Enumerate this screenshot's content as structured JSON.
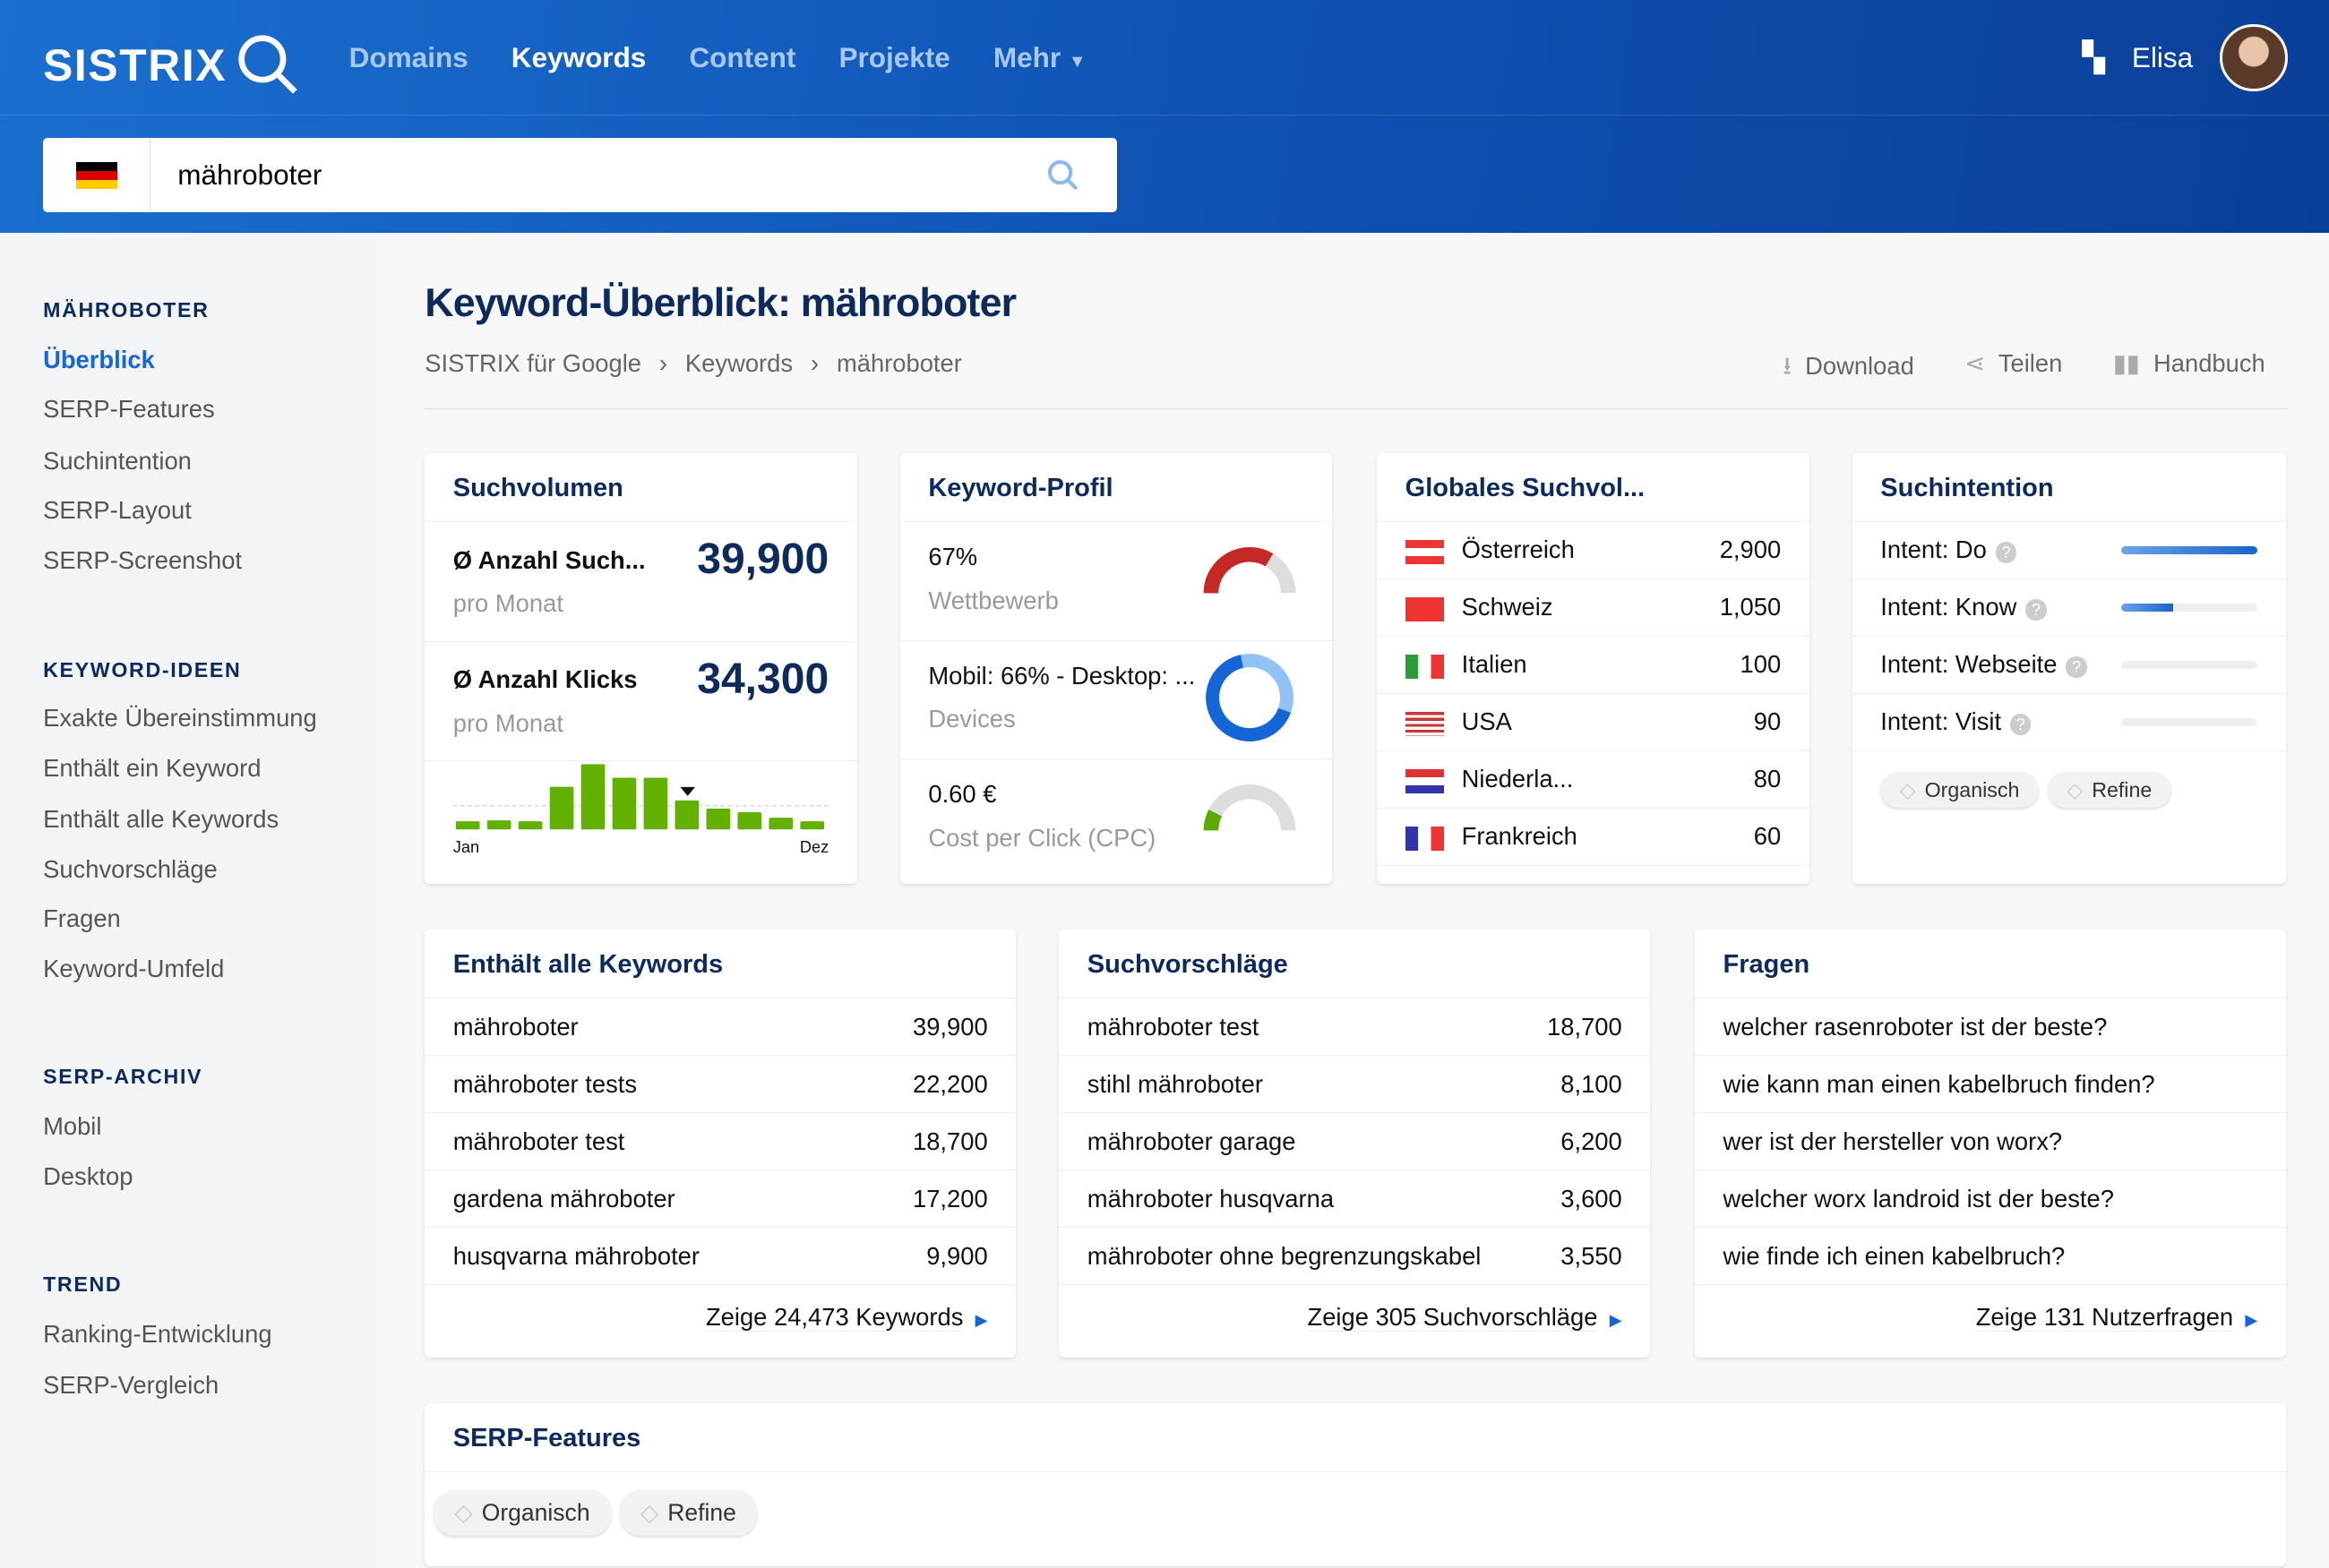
{
  "header": {
    "logo": "SISTRIX",
    "nav": [
      "Domains",
      "Keywords",
      "Content",
      "Projekte",
      "Mehr"
    ],
    "user": "Elisa"
  },
  "search": {
    "value": "mähroboter"
  },
  "sidebar": {
    "sections": [
      {
        "title": "MÄHROBOTER",
        "items": [
          "Überblick",
          "SERP-Features",
          "Suchintention",
          "SERP-Layout",
          "SERP-Screenshot"
        ]
      },
      {
        "title": "KEYWORD-IDEEN",
        "items": [
          "Exakte Übereinstimmung",
          "Enthält ein Keyword",
          "Enthält alle Keywords",
          "Suchvorschläge",
          "Fragen",
          "Keyword-Umfeld"
        ]
      },
      {
        "title": "SERP-ARCHIV",
        "items": [
          "Mobil",
          "Desktop"
        ]
      },
      {
        "title": "TREND",
        "items": [
          "Ranking-Entwicklung",
          "SERP-Vergleich"
        ]
      }
    ]
  },
  "page": {
    "title": "Keyword-Überblick: mähroboter",
    "breadcrumb": [
      "SISTRIX für Google",
      "Keywords",
      "mähroboter"
    ],
    "actions": [
      "Download",
      "Teilen",
      "Handbuch"
    ]
  },
  "volume": {
    "title": "Suchvolumen",
    "r1_label": "Ø Anzahl Such...",
    "r1_value": "39,900",
    "r1_sub": "pro Monat",
    "r2_label": "Ø Anzahl Klicks",
    "r2_value": "34,300",
    "r2_sub": "pro Monat",
    "x_start": "Jan",
    "x_end": "Dez",
    "chart_data": {
      "type": "bar",
      "categories": [
        "Jan",
        "Feb",
        "Mär",
        "Apr",
        "Mai",
        "Jun",
        "Jul",
        "Aug",
        "Sep",
        "Okt",
        "Nov",
        "Dez"
      ],
      "values": [
        9,
        10,
        9,
        47,
        72,
        57,
        57,
        32,
        23,
        19,
        13,
        9
      ],
      "marker_index": 7
    }
  },
  "profile": {
    "title": "Keyword-Profil",
    "r1": "67%",
    "r1_sub": "Wettbewerb",
    "r2": "Mobil: 66% - Desktop: ...",
    "r2_sub": "Devices",
    "r3": "0.60 €",
    "r3_sub": "Cost per Click (CPC)",
    "competition": 0.67,
    "mobile": 0.66,
    "cpc_gauge": 0.15
  },
  "global": {
    "title": "Globales Suchvol...",
    "rows": [
      [
        "Österreich",
        "2,900"
      ],
      [
        "Schweiz",
        "1,050"
      ],
      [
        "Italien",
        "100"
      ],
      [
        "USA",
        "90"
      ],
      [
        "Niederla...",
        "80"
      ],
      [
        "Frankreich",
        "60"
      ]
    ]
  },
  "intent": {
    "title": "Suchintention",
    "rows": [
      [
        "Intent: Do",
        1.0
      ],
      [
        "Intent: Know",
        0.38
      ],
      [
        "Intent: Webseite",
        0
      ],
      [
        "Intent: Visit",
        0
      ]
    ],
    "chips": [
      "Organisch",
      "Refine"
    ]
  },
  "allkw": {
    "title": "Enthält alle Keywords",
    "rows": [
      [
        "mähroboter",
        "39,900"
      ],
      [
        "mähroboter tests",
        "22,200"
      ],
      [
        "mähroboter test",
        "18,700"
      ],
      [
        "gardena mähroboter",
        "17,200"
      ],
      [
        "husqvarna mähroboter",
        "9,900"
      ]
    ],
    "more": "Zeige 24,473 Keywords"
  },
  "sugg": {
    "title": "Suchvorschläge",
    "rows": [
      [
        "mähroboter test",
        "18,700"
      ],
      [
        "stihl mähroboter",
        "8,100"
      ],
      [
        "mähroboter garage",
        "6,200"
      ],
      [
        "mähroboter husqvarna",
        "3,600"
      ],
      [
        "mähroboter ohne begrenzungskabel",
        "3,550"
      ]
    ],
    "more": "Zeige 305 Suchvorschläge"
  },
  "faq": {
    "title": "Fragen",
    "rows": [
      [
        "welcher rasenroboter ist der beste?",
        ""
      ],
      [
        "wie kann man einen kabelbruch finden?",
        ""
      ],
      [
        "wer ist der hersteller von worx?",
        ""
      ],
      [
        "welcher worx landroid ist der beste?",
        ""
      ],
      [
        "wie finde ich einen kabelbruch?",
        ""
      ]
    ],
    "more": "Zeige 131 Nutzerfragen"
  },
  "serp": {
    "title": "SERP-Features",
    "chips": [
      "Organisch",
      "Refine"
    ]
  }
}
